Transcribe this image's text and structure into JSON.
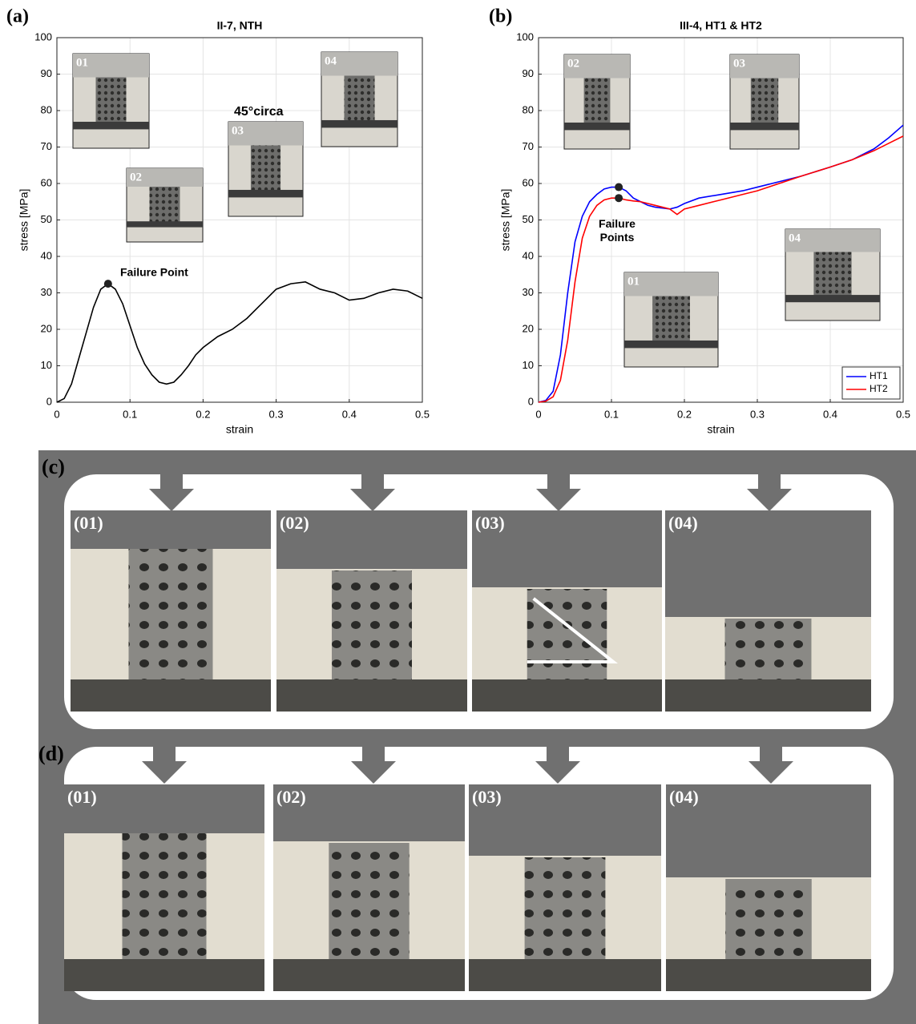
{
  "chart_data": [
    {
      "type": "line",
      "title": "II-7, NTH",
      "x_label": "strain",
      "y_label": "stress [MPa]",
      "xlim": [
        0,
        0.5
      ],
      "ylim": [
        0,
        100
      ],
      "xticks": [
        0,
        0.1,
        0.2,
        0.3,
        0.4,
        0.5
      ],
      "yticks": [
        0,
        10,
        20,
        30,
        40,
        50,
        60,
        70,
        80,
        90,
        100
      ],
      "grid": true,
      "x": [
        0,
        0.01,
        0.02,
        0.03,
        0.04,
        0.05,
        0.06,
        0.07,
        0.08,
        0.09,
        0.1,
        0.11,
        0.12,
        0.13,
        0.14,
        0.15,
        0.16,
        0.17,
        0.18,
        0.19,
        0.2,
        0.22,
        0.24,
        0.26,
        0.28,
        0.3,
        0.32,
        0.34,
        0.36,
        0.38,
        0.4,
        0.42,
        0.44,
        0.46,
        0.48,
        0.5
      ],
      "series": [
        {
          "color": "#000000",
          "values": [
            0,
            1,
            5,
            12,
            19,
            26,
            31,
            32.5,
            31,
            27,
            21,
            15,
            10.5,
            7.5,
            5.5,
            5,
            5.5,
            7.5,
            10,
            13,
            15,
            18,
            20,
            23,
            27,
            31,
            32.5,
            33,
            31,
            30,
            28,
            28.5,
            30,
            31,
            30.5,
            28.5
          ]
        }
      ],
      "annotations": [
        "Failure Point",
        "45°circa"
      ],
      "insets": [
        "01",
        "02",
        "03",
        "04"
      ]
    },
    {
      "type": "line",
      "title": "III-4, HT1 & HT2",
      "x_label": "strain",
      "y_label": "stress [MPa]",
      "xlim": [
        0,
        0.5
      ],
      "ylim": [
        0,
        100
      ],
      "xticks": [
        0,
        0.1,
        0.2,
        0.3,
        0.4,
        0.5
      ],
      "yticks": [
        0,
        10,
        20,
        30,
        40,
        50,
        60,
        70,
        80,
        90,
        100
      ],
      "grid": true,
      "legend": "lower right",
      "x": [
        0,
        0.01,
        0.02,
        0.03,
        0.04,
        0.05,
        0.06,
        0.07,
        0.08,
        0.09,
        0.1,
        0.11,
        0.12,
        0.13,
        0.14,
        0.15,
        0.16,
        0.18,
        0.19,
        0.2,
        0.22,
        0.25,
        0.28,
        0.3,
        0.33,
        0.36,
        0.4,
        0.43,
        0.46,
        0.48,
        0.5
      ],
      "series": [
        {
          "name": "HT1",
          "color": "#0000ff",
          "values": [
            0,
            0.5,
            3,
            13,
            30,
            44,
            51,
            55,
            57,
            58.5,
            59,
            59,
            58,
            56,
            55,
            54,
            53.5,
            53,
            53.5,
            54.5,
            56,
            57,
            58,
            59,
            60.5,
            62,
            64.5,
            66.5,
            69.5,
            72.5,
            76
          ]
        },
        {
          "name": "HT2",
          "color": "#ff0000",
          "values": [
            0,
            0.3,
            1.5,
            6,
            17,
            33,
            45,
            51,
            54,
            55.5,
            56,
            56,
            55.5,
            55.2,
            55,
            54.5,
            54,
            53,
            51.5,
            53,
            54,
            55.5,
            57,
            58,
            60,
            62,
            64.5,
            66.5,
            69,
            71,
            73
          ]
        }
      ],
      "annotations": [
        "Failure\nPoints"
      ],
      "insets": [
        "02",
        "03",
        "01",
        "04"
      ]
    }
  ],
  "figure": {
    "panel_labels": [
      "(a)",
      "(b)",
      "(c)",
      "(d)"
    ],
    "rows": [
      {
        "frames": [
          "(01)",
          "(02)",
          "(03)",
          "(04)"
        ]
      },
      {
        "frames": [
          "(01)",
          "(02)",
          "(03)",
          "(04)"
        ]
      }
    ]
  }
}
